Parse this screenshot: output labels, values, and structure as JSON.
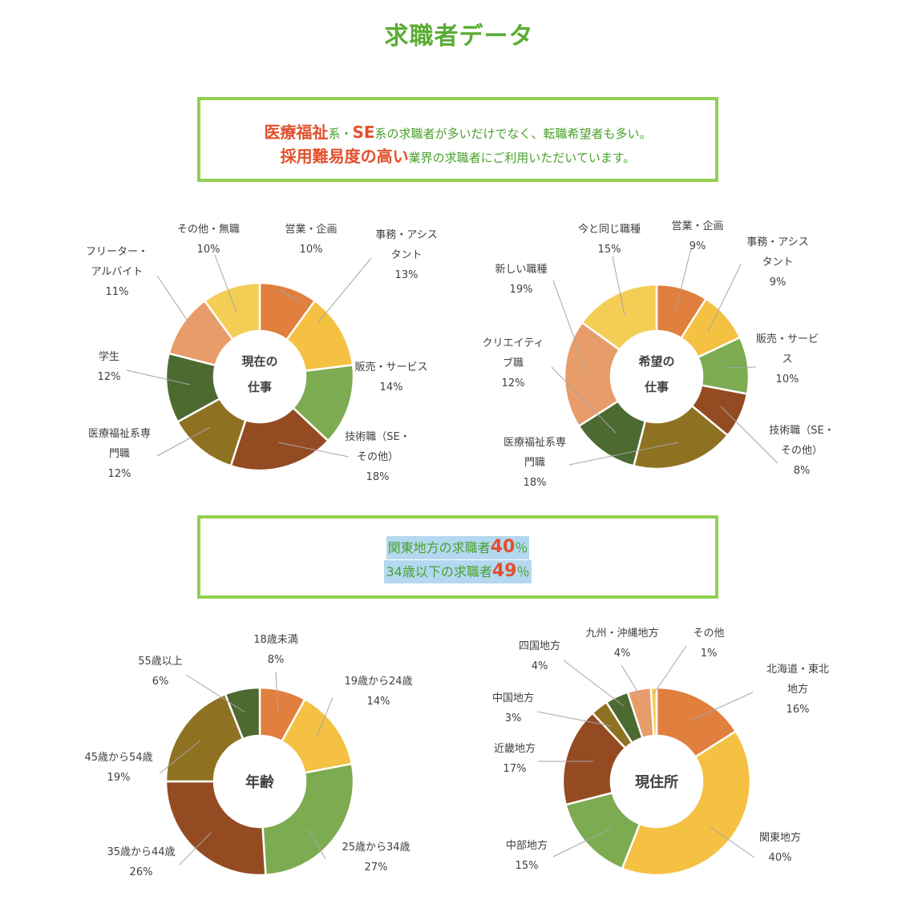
{
  "title": "求職者データ",
  "callout1": {
    "line1": [
      {
        "text": "医療福祉",
        "style": "red"
      },
      {
        "text": "系・",
        "style": "green"
      },
      {
        "text": "SE",
        "style": "red"
      },
      {
        "text": "系の求職者が多いだけでなく、転職希望者も多い。",
        "style": "green"
      }
    ],
    "line2": [
      {
        "text": "採用難易度の高い",
        "style": "red"
      },
      {
        "text": "業界の求職者にご利用いただいています。",
        "style": "green"
      }
    ]
  },
  "callout2": {
    "line1_prefix": "関東地方の求職者",
    "line1_num": "40",
    "line1_unit": "％",
    "line2_prefix": "34歳以下の求職者",
    "line2_num": "49",
    "line2_unit": "％"
  },
  "colors": {
    "orange": "#e07f3e",
    "yellow": "#f4c143",
    "green": "#7dab52",
    "brown": "#944b22",
    "olive": "#8f7122",
    "darkgreen": "#4d6a31",
    "salmon": "#e79c6a",
    "paleyellow": "#f4cd55"
  },
  "chart_data": [
    {
      "type": "pie",
      "center_label": [
        "現在の",
        "仕事"
      ],
      "slices": [
        {
          "label": [
            "営業・企画"
          ],
          "value": 10,
          "pct": "10%",
          "color": "#e07f3e"
        },
        {
          "label": [
            "事務・アシス",
            "タント"
          ],
          "value": 13,
          "pct": "13%",
          "color": "#f4c143"
        },
        {
          "label": [
            "販売・サービス"
          ],
          "value": 14,
          "pct": "14%",
          "color": "#7dab52"
        },
        {
          "label": [
            "技術職（SE・",
            "その他）"
          ],
          "value": 18,
          "pct": "18%",
          "color": "#944b22"
        },
        {
          "label": [
            "医療福祉系専",
            "門職"
          ],
          "value": 12,
          "pct": "12%",
          "color": "#8f7122"
        },
        {
          "label": [
            "学生"
          ],
          "value": 12,
          "pct": "12%",
          "color": "#4d6a31"
        },
        {
          "label": [
            "フリーター・",
            "アルバイト"
          ],
          "value": 11,
          "pct": "11%",
          "color": "#e79c6a"
        },
        {
          "label": [
            "その他・無職"
          ],
          "value": 10,
          "pct": "10%",
          "color": "#f4cd55"
        }
      ]
    },
    {
      "type": "pie",
      "center_label": [
        "希望の",
        "仕事"
      ],
      "slices": [
        {
          "label": [
            "営業・企画"
          ],
          "value": 9,
          "pct": "9%",
          "color": "#e07f3e"
        },
        {
          "label": [
            "事務・アシス",
            "タント"
          ],
          "value": 9,
          "pct": "9%",
          "color": "#f4c143"
        },
        {
          "label": [
            "販売・サービ",
            "ス"
          ],
          "value": 10,
          "pct": "10%",
          "color": "#7dab52"
        },
        {
          "label": [
            "技術職（SE・",
            "その他）"
          ],
          "value": 8,
          "pct": "8%",
          "color": "#944b22"
        },
        {
          "label": [
            "医療福祉系専",
            "門職"
          ],
          "value": 18,
          "pct": "18%",
          "color": "#8f7122"
        },
        {
          "label": [
            "クリエイティ",
            "ブ職"
          ],
          "value": 12,
          "pct": "12%",
          "color": "#4d6a31"
        },
        {
          "label": [
            "新しい職種"
          ],
          "value": 19,
          "pct": "19%",
          "color": "#e79c6a"
        },
        {
          "label": [
            "今と同じ職種"
          ],
          "value": 15,
          "pct": "15%",
          "color": "#f4cd55"
        }
      ]
    },
    {
      "type": "pie",
      "center_label": [
        "年齢"
      ],
      "slices": [
        {
          "label": [
            "18歳未満"
          ],
          "value": 8,
          "pct": "8%",
          "color": "#e07f3e"
        },
        {
          "label": [
            "19歳から24歳"
          ],
          "value": 14,
          "pct": "14%",
          "color": "#f4c143"
        },
        {
          "label": [
            "25歳から34歳"
          ],
          "value": 27,
          "pct": "27%",
          "color": "#7dab52"
        },
        {
          "label": [
            "35歳から44歳"
          ],
          "value": 26,
          "pct": "26%",
          "color": "#944b22"
        },
        {
          "label": [
            "45歳から54歳"
          ],
          "value": 19,
          "pct": "19%",
          "color": "#8f7122"
        },
        {
          "label": [
            "55歳以上"
          ],
          "value": 6,
          "pct": "6%",
          "color": "#4d6a31"
        }
      ]
    },
    {
      "type": "pie",
      "center_label": [
        "現住所"
      ],
      "slices": [
        {
          "label": [
            "北海道・東北",
            "地方"
          ],
          "value": 16,
          "pct": "16%",
          "color": "#e07f3e"
        },
        {
          "label": [
            "関東地方"
          ],
          "value": 40,
          "pct": "40%",
          "color": "#f4c143"
        },
        {
          "label": [
            "中部地方"
          ],
          "value": 15,
          "pct": "15%",
          "color": "#7dab52"
        },
        {
          "label": [
            "近畿地方"
          ],
          "value": 17,
          "pct": "17%",
          "color": "#944b22"
        },
        {
          "label": [
            "中国地方"
          ],
          "value": 3,
          "pct": "3%",
          "color": "#8f7122"
        },
        {
          "label": [
            "四国地方"
          ],
          "value": 4,
          "pct": "4%",
          "color": "#4d6a31"
        },
        {
          "label": [
            "九州・沖縄地方"
          ],
          "value": 4,
          "pct": "4%",
          "color": "#e79c6a"
        },
        {
          "label": [
            "その他"
          ],
          "value": 1,
          "pct": "1%",
          "color": "#f4cd55"
        }
      ]
    }
  ]
}
